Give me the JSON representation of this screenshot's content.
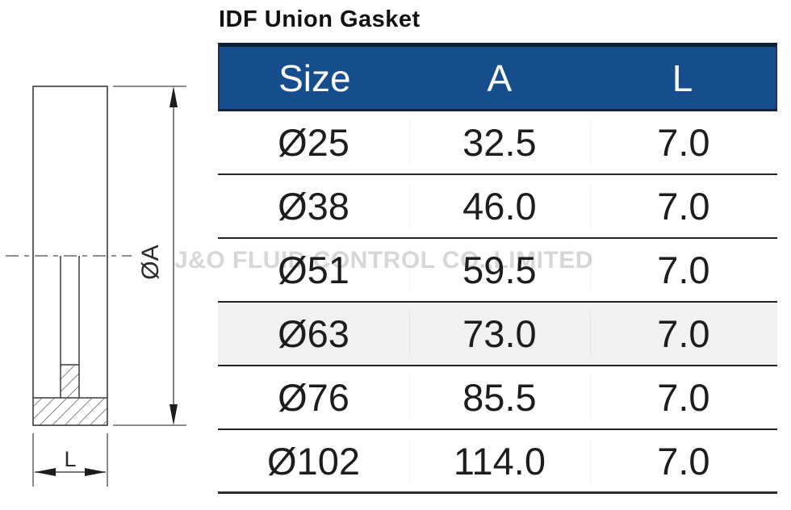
{
  "title": "IDF Union Gasket",
  "watermark": "J&O FLUID CONTROL CO.,LIMITED",
  "diagram": {
    "dim_vertical_label": "ØA",
    "dim_horizontal_label": "L"
  },
  "table": {
    "columns": [
      "Size",
      "A",
      "L"
    ],
    "rows": [
      [
        "Ø25",
        "32.5",
        "7.0"
      ],
      [
        "Ø38",
        "46.0",
        "7.0"
      ],
      [
        "Ø51",
        "59.5",
        "7.0"
      ],
      [
        "Ø63",
        "73.0",
        "7.0"
      ],
      [
        "Ø76",
        "85.5",
        "7.0"
      ],
      [
        "Ø102",
        "114.0",
        "7.0"
      ]
    ],
    "highlighted_row_index": 3
  },
  "colors": {
    "header_bg": "#164e8d",
    "header_top_strip": "#101d36",
    "header_border": "#1b2134",
    "header_text": "#fafafa",
    "row_highlight_bg": "#f1f1ef",
    "separator": "#242424",
    "body_text": "#1d1d1d",
    "watermark": "#d7d7d7"
  }
}
